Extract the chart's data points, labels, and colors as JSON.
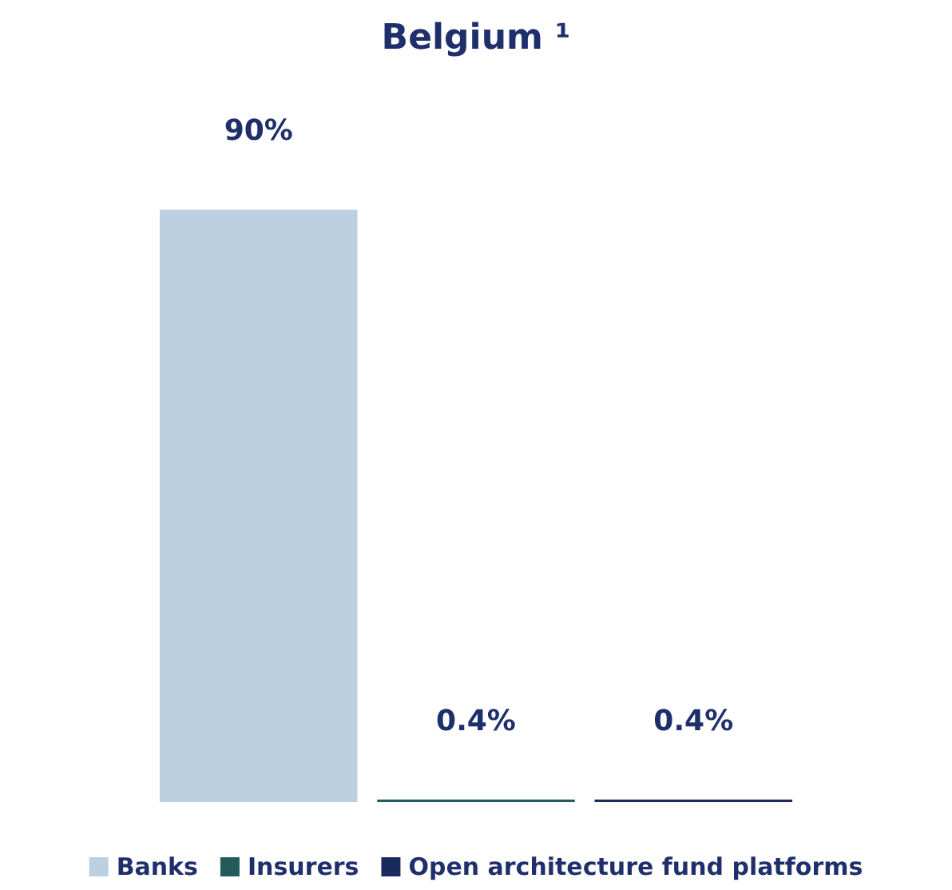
{
  "chart_data": {
    "type": "bar",
    "title": "Belgium ¹",
    "categories": [
      null
    ],
    "series": [
      {
        "name": "Banks",
        "color": "#bdd0e2",
        "values": [
          90
        ],
        "value_labels": [
          "90%"
        ]
      },
      {
        "name": "Insurers",
        "color": "#245a5a",
        "values": [
          0.4
        ],
        "value_labels": [
          "0.4%"
        ]
      },
      {
        "name": "Open architecture fund platforms",
        "color": "#1b2a5c",
        "values": [
          0.4
        ],
        "value_labels": [
          "0.4%"
        ]
      }
    ],
    "legend": "bottom"
  }
}
